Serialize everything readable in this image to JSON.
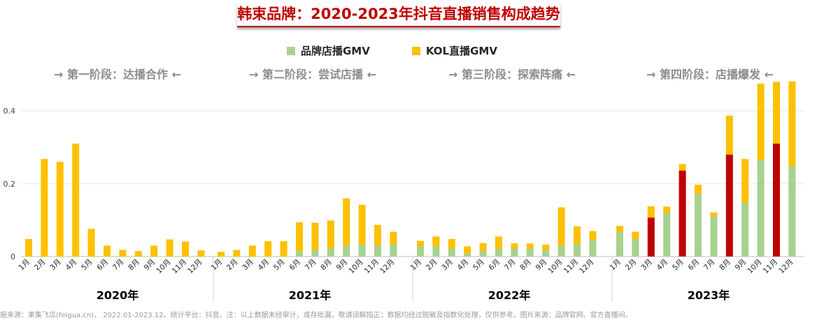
{
  "title": "韩束品牌：2020-2023年抖音直播销售构成趋势",
  "legend": [
    {
      "label": "品牌店播GMV",
      "color": "#a9d18e"
    },
    {
      "label": "KOL直播GMV",
      "color": "#ffc000"
    }
  ],
  "highlight_color": "#c00000",
  "stages": [
    "→ 第一阶段：达播合作 ←",
    "→ 第二阶段：尝试店播 ←",
    "→ 第三阶段：探索阵痛 ←",
    "→ 第四阶段：店播爆发 ←"
  ],
  "years": [
    "2020年",
    "2021年",
    "2022年",
    "2023年"
  ],
  "footnote": "据来源：果集飞瓜(feigua.cn)， 2022.01-2023.12。统计平台：抖音。注：以上数据未经审计，或存纰漏，敬请谅解指正；数据均经过脱敏及指数化处理，仅供参考。图片来源：品牌官网、官方直播间。",
  "chart_data": {
    "type": "bar",
    "stacked": true,
    "categories": [
      "1月",
      "2月",
      "3月",
      "4月",
      "5月",
      "6月",
      "7月",
      "8月",
      "9月",
      "10月",
      "11月",
      "12月"
    ],
    "yticks": [
      "0",
      "0.2",
      "0.4"
    ],
    "ylim": [
      0,
      0.48
    ],
    "series_names": [
      "品牌店播GMV",
      "KOL直播GMV"
    ],
    "groups": [
      {
        "year": "2020年",
        "brand": [
          0,
          0,
          0,
          0,
          0,
          0,
          0,
          0,
          0,
          0,
          0,
          0
        ],
        "kol": [
          0.048,
          0.268,
          0.26,
          0.31,
          0.076,
          0.03,
          0.018,
          0.015,
          0.03,
          0.047,
          0.041,
          0.017
        ],
        "highlight": [
          false,
          false,
          false,
          false,
          false,
          false,
          false,
          false,
          false,
          false,
          false,
          false
        ]
      },
      {
        "year": "2021年",
        "brand": [
          0,
          0,
          0,
          0,
          0,
          0.013,
          0.018,
          0.022,
          0.03,
          0.033,
          0.03,
          0.033
        ],
        "kol": [
          0.013,
          0.018,
          0.03,
          0.042,
          0.042,
          0.081,
          0.075,
          0.077,
          0.13,
          0.109,
          0.057,
          0.035
        ],
        "highlight": [
          false,
          false,
          false,
          false,
          false,
          false,
          false,
          false,
          false,
          false,
          false,
          false
        ]
      },
      {
        "year": "2022年",
        "brand": [
          0.028,
          0.028,
          0.022,
          0.008,
          0.015,
          0.02,
          0.022,
          0.022,
          0.018,
          0.03,
          0.033,
          0.045
        ],
        "kol": [
          0.015,
          0.027,
          0.026,
          0.02,
          0.022,
          0.035,
          0.014,
          0.014,
          0.015,
          0.105,
          0.05,
          0.025
        ],
        "highlight": [
          false,
          false,
          false,
          false,
          false,
          false,
          false,
          false,
          false,
          false,
          false,
          false
        ]
      },
      {
        "year": "2023年",
        "brand": [
          0.068,
          0.048,
          0.107,
          0.12,
          0.236,
          0.172,
          0.11,
          0.28,
          0.148,
          0.265,
          0.31,
          0.248
        ],
        "kol": [
          0.016,
          0.02,
          0.031,
          0.017,
          0.018,
          0.025,
          0.011,
          0.107,
          0.12,
          0.21,
          0.17,
          0.233
        ],
        "highlight": [
          false,
          false,
          true,
          false,
          true,
          false,
          false,
          true,
          false,
          false,
          true,
          false
        ]
      }
    ]
  }
}
